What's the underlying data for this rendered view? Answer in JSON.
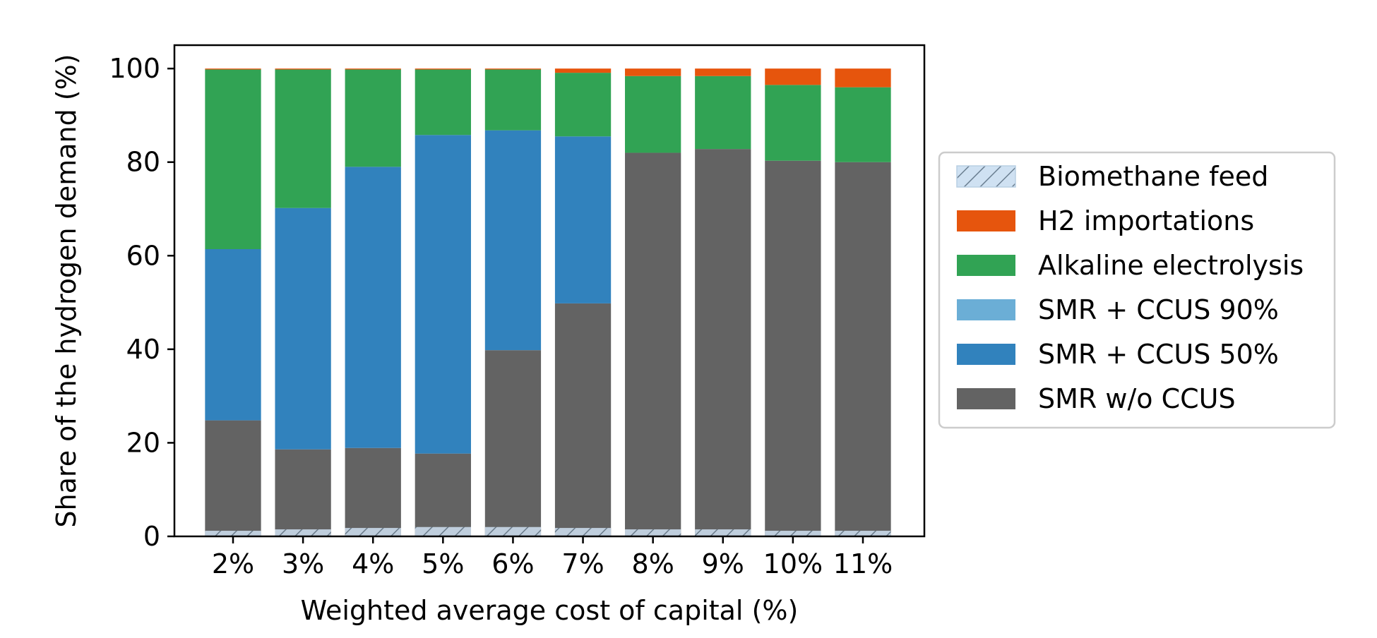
{
  "chart_data": {
    "type": "bar",
    "stacked": true,
    "xlabel": "Weighted average cost of capital (%)",
    "ylabel": "Share of the hydrogen demand (%)",
    "ylim": [
      0,
      105
    ],
    "yticks": [
      "0",
      "20",
      "40",
      "60",
      "80",
      "100"
    ],
    "categories": [
      "2%",
      "3%",
      "4%",
      "5%",
      "6%",
      "7%",
      "8%",
      "9%",
      "10%",
      "11%"
    ],
    "grid": false,
    "legend_position": "right",
    "series": [
      {
        "name": "SMR w/o CCUS",
        "color": "#636363",
        "values": [
          24.8,
          18.6,
          18.9,
          17.7,
          39.8,
          49.8,
          82.0,
          82.8,
          80.3,
          80.0
        ]
      },
      {
        "name": "SMR + CCUS 50%",
        "color": "#3182bd",
        "values": [
          36.6,
          51.6,
          60.1,
          68.1,
          47.0,
          35.7,
          0,
          0,
          0,
          0
        ]
      },
      {
        "name": "SMR + CCUS 90%",
        "color": "#6baed6",
        "values": [
          0,
          0,
          0,
          0,
          0,
          0,
          0,
          0,
          0,
          0
        ]
      },
      {
        "name": "Alkaline electrolysis",
        "color": "#31a354",
        "values": [
          38.4,
          29.6,
          20.8,
          14.0,
          13.0,
          13.6,
          16.4,
          15.6,
          16.2,
          16.0
        ]
      },
      {
        "name": "H2 importations",
        "color": "#e6550d",
        "values": [
          0.2,
          0.2,
          0.2,
          0.2,
          0.2,
          0.9,
          1.6,
          1.6,
          3.5,
          4.0
        ]
      }
    ],
    "overlay_series": {
      "name": "Biomethane feed",
      "color": "#cfe1f2",
      "hatch": "diagonal",
      "values": [
        1.2,
        1.5,
        1.8,
        2.0,
        2.0,
        1.8,
        1.5,
        1.5,
        1.2,
        1.2
      ]
    },
    "legend_order": [
      "Biomethane feed",
      "H2 importations",
      "Alkaline electrolysis",
      "SMR + CCUS 90%",
      "SMR + CCUS 50%",
      "SMR w/o CCUS"
    ]
  }
}
